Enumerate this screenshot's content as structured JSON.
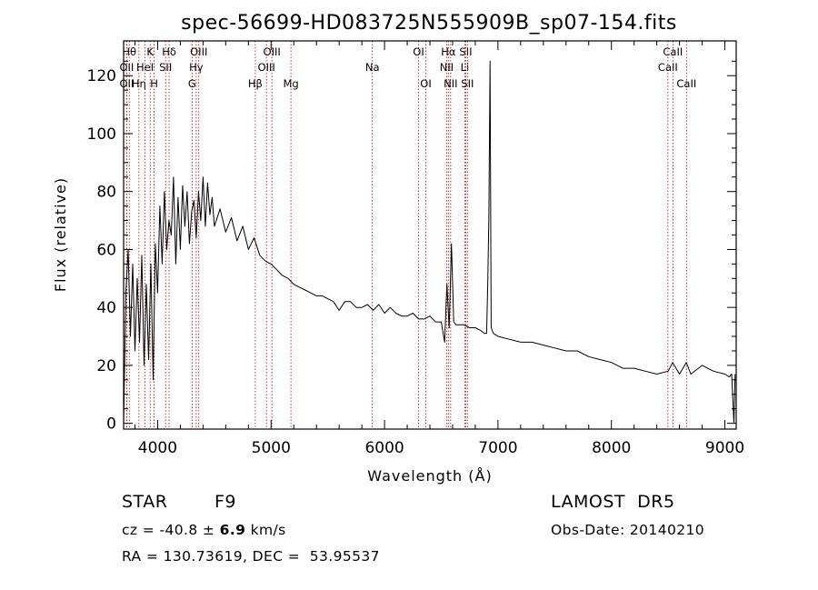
{
  "chart_data": {
    "type": "line",
    "title": "spec-56699-HD083725N555909B_sp07-154.fits",
    "xlabel": "Wavelength (Å)",
    "ylabel": "Flux (relative)",
    "xlim": [
      3700,
      9100
    ],
    "ylim": [
      -2,
      132
    ],
    "x_ticks": [
      4000,
      5000,
      6000,
      7000,
      8000,
      9000
    ],
    "y_ticks": [
      0,
      20,
      40,
      60,
      80,
      100,
      120
    ],
    "grid": false,
    "series": [
      {
        "color": "#000000",
        "x": [
          3700,
          3720,
          3740,
          3760,
          3780,
          3800,
          3820,
          3840,
          3860,
          3880,
          3900,
          3920,
          3940,
          3960,
          3980,
          4000,
          4020,
          4040,
          4060,
          4080,
          4100,
          4120,
          4140,
          4160,
          4180,
          4200,
          4220,
          4240,
          4260,
          4280,
          4300,
          4320,
          4340,
          4360,
          4380,
          4400,
          4420,
          4440,
          4460,
          4480,
          4500,
          4550,
          4600,
          4650,
          4700,
          4750,
          4800,
          4850,
          4900,
          4950,
          5000,
          5050,
          5100,
          5150,
          5200,
          5250,
          5300,
          5350,
          5400,
          5450,
          5500,
          5550,
          5600,
          5650,
          5700,
          5750,
          5800,
          5850,
          5900,
          5950,
          6000,
          6050,
          6100,
          6150,
          6200,
          6250,
          6300,
          6350,
          6400,
          6450,
          6500,
          6530,
          6550,
          6570,
          6590,
          6610,
          6630,
          6650,
          6700,
          6750,
          6800,
          6850,
          6880,
          6900,
          6910,
          6920,
          6930,
          6940,
          6960,
          7000,
          7100,
          7200,
          7300,
          7400,
          7500,
          7600,
          7700,
          7800,
          7900,
          8000,
          8100,
          8200,
          8300,
          8400,
          8500,
          8540,
          8600,
          8660,
          8700,
          8800,
          8900,
          9000,
          9040,
          9060,
          9080,
          9090
        ],
        "y": [
          0,
          45,
          60,
          30,
          55,
          25,
          50,
          28,
          58,
          20,
          48,
          22,
          55,
          15,
          62,
          45,
          75,
          55,
          80,
          60,
          70,
          65,
          85,
          55,
          78,
          60,
          82,
          68,
          80,
          62,
          73,
          77,
          64,
          80,
          70,
          85,
          68,
          83,
          72,
          78,
          68,
          74,
          66,
          71,
          63,
          68,
          60,
          64,
          58,
          56,
          55,
          53,
          51,
          50,
          48,
          47,
          46,
          45,
          44,
          44,
          43,
          42,
          39,
          42,
          42,
          40,
          40,
          41,
          39,
          41,
          38,
          40,
          38,
          37,
          37,
          38,
          36,
          36,
          37,
          35,
          35,
          28,
          48,
          33,
          62,
          35,
          34,
          34,
          34,
          33,
          33,
          32,
          31,
          31,
          49,
          72,
          125,
          33,
          31,
          30,
          29,
          28,
          28,
          27,
          26,
          25,
          25,
          23,
          22,
          21,
          19,
          19,
          18,
          17,
          18,
          21,
          17,
          21,
          17,
          20,
          18,
          17,
          16,
          17,
          0,
          17
        ]
      }
    ],
    "annotations": [
      {
        "text": "Hθ",
        "x": 3750,
        "row": 1
      },
      {
        "text": "K",
        "x": 3934,
        "row": 1
      },
      {
        "text": "Hδ",
        "x": 4101,
        "row": 1
      },
      {
        "text": "OIII",
        "x": 4363,
        "row": 1
      },
      {
        "text": "OIII",
        "x": 5007,
        "row": 1
      },
      {
        "text": "OI",
        "x": 6300,
        "row": 1
      },
      {
        "text": "Hα",
        "x": 6563,
        "row": 1
      },
      {
        "text": "SII",
        "x": 6716,
        "row": 1
      },
      {
        "text": "CaII",
        "x": 8542,
        "row": 1
      },
      {
        "text": "OII",
        "x": 3727,
        "row": 2
      },
      {
        "text": "HeI",
        "x": 3889,
        "row": 2
      },
      {
        "text": "SII",
        "x": 4070,
        "row": 2
      },
      {
        "text": "Hγ",
        "x": 4340,
        "row": 2
      },
      {
        "text": "OIII",
        "x": 4959,
        "row": 2
      },
      {
        "text": "Na",
        "x": 5893,
        "row": 2
      },
      {
        "text": "NII",
        "x": 6548,
        "row": 2
      },
      {
        "text": "Li",
        "x": 6708,
        "row": 2
      },
      {
        "text": "CaII",
        "x": 8498,
        "row": 2
      },
      {
        "text": "OII",
        "x": 3727,
        "row": 3
      },
      {
        "text": "Hη",
        "x": 3835,
        "row": 3
      },
      {
        "text": "H",
        "x": 3969,
        "row": 3
      },
      {
        "text": "G",
        "x": 4304,
        "row": 3
      },
      {
        "text": "Hβ",
        "x": 4861,
        "row": 3
      },
      {
        "text": "Mg",
        "x": 5175,
        "row": 3
      },
      {
        "text": "OI",
        "x": 6364,
        "row": 3
      },
      {
        "text": "NII",
        "x": 6583,
        "row": 3
      },
      {
        "text": "SII",
        "x": 6731,
        "row": 3
      },
      {
        "text": "CaII",
        "x": 8662,
        "row": 3
      }
    ],
    "line_marker_color": "#cc0000"
  },
  "footer": {
    "object_class": "STAR",
    "subclass": "F9",
    "survey": "LAMOST  DR5",
    "cz_prefix": "cz = -40.8 ± ",
    "cz_error": "6.9",
    "cz_unit": " km/s",
    "obs_date": "Obs-Date: 20140210",
    "coords": "RA = 130.73619, DEC =  53.95537"
  }
}
